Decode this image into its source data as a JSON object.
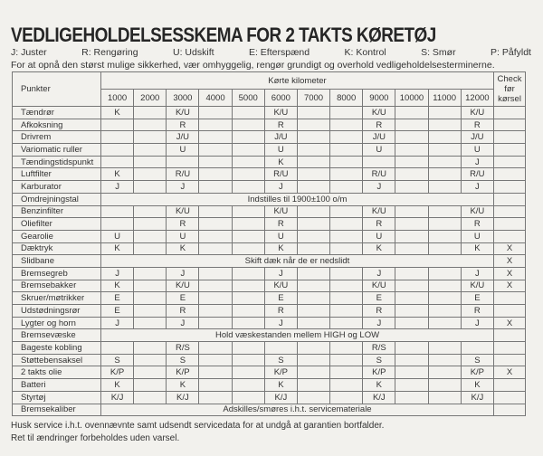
{
  "title": "VEDLIGEHOLDELSESSKEMA FOR 2 TAKTS KØRETØJ",
  "legend": [
    "J: Juster",
    "R: Rengøring",
    "U: Udskift",
    "E: Efterspænd",
    "K: Kontrol",
    "S: Smør",
    "P: Påfyldt"
  ],
  "intro": "For at opnå den størst mulige sikkerhed, vær omhyggelig, rengør grundigt og overhold vedligeholdelsesterminerne.",
  "table": {
    "col_punkter": "Punkter",
    "col_km": "Kørte kilometer",
    "col_check": "Check før kørsel",
    "km": [
      "1000",
      "2000",
      "3000",
      "4000",
      "5000",
      "6000",
      "7000",
      "8000",
      "9000",
      "10000",
      "11000",
      "12000"
    ],
    "rows": [
      {
        "name": "Tændrør",
        "cells": [
          "K",
          "",
          "K/U",
          "",
          "",
          "K/U",
          "",
          "",
          "K/U",
          "",
          "",
          "K/U"
        ],
        "check": ""
      },
      {
        "name": "Afkoksning",
        "cells": [
          "",
          "",
          "R",
          "",
          "",
          "R",
          "",
          "",
          "R",
          "",
          "",
          "R"
        ],
        "check": ""
      },
      {
        "name": "Drivrem",
        "cells": [
          "",
          "",
          "J/U",
          "",
          "",
          "J/U",
          "",
          "",
          "J/U",
          "",
          "",
          "J/U"
        ],
        "check": ""
      },
      {
        "name": "Variomatic ruller",
        "cells": [
          "",
          "",
          "U",
          "",
          "",
          "U",
          "",
          "",
          "U",
          "",
          "",
          "U"
        ],
        "check": ""
      },
      {
        "name": "Tændingstidspunkt",
        "cells": [
          "",
          "",
          "",
          "",
          "",
          "K",
          "",
          "",
          "",
          "",
          "",
          "J"
        ],
        "check": ""
      },
      {
        "name": "Luftfilter",
        "cells": [
          "K",
          "",
          "R/U",
          "",
          "",
          "R/U",
          "",
          "",
          "R/U",
          "",
          "",
          "R/U"
        ],
        "check": ""
      },
      {
        "name": "Karburator",
        "cells": [
          "J",
          "",
          "J",
          "",
          "",
          "J",
          "",
          "",
          "J",
          "",
          "",
          "J"
        ],
        "check": ""
      },
      {
        "name": "Omdrejningstal",
        "span": "Indstilles til 1900±100 o/m",
        "check": ""
      },
      {
        "name": "Benzinfilter",
        "cells": [
          "",
          "",
          "K/U",
          "",
          "",
          "K/U",
          "",
          "",
          "K/U",
          "",
          "",
          "K/U"
        ],
        "check": ""
      },
      {
        "name": "Oliefilter",
        "cells": [
          "",
          "",
          "R",
          "",
          "",
          "R",
          "",
          "",
          "R",
          "",
          "",
          "R"
        ],
        "check": ""
      },
      {
        "name": "Gearolie",
        "cells": [
          "U",
          "",
          "U",
          "",
          "",
          "U",
          "",
          "",
          "U",
          "",
          "",
          "U"
        ],
        "check": ""
      },
      {
        "name": "Dæktryk",
        "cells": [
          "K",
          "",
          "K",
          "",
          "",
          "K",
          "",
          "",
          "K",
          "",
          "",
          "K"
        ],
        "check": "X"
      },
      {
        "name": "Slidbane",
        "span": "Skift dæk når de er nedslidt",
        "check": "X"
      },
      {
        "name": "Bremsegreb",
        "cells": [
          "J",
          "",
          "J",
          "",
          "",
          "J",
          "",
          "",
          "J",
          "",
          "",
          "J"
        ],
        "check": "X"
      },
      {
        "name": "Bremsebakker",
        "cells": [
          "K",
          "",
          "K/U",
          "",
          "",
          "K/U",
          "",
          "",
          "K/U",
          "",
          "",
          "K/U"
        ],
        "check": "X"
      },
      {
        "name": "Skruer/møtrikker",
        "cells": [
          "E",
          "",
          "E",
          "",
          "",
          "E",
          "",
          "",
          "E",
          "",
          "",
          "E"
        ],
        "check": ""
      },
      {
        "name": "Udstødningsrør",
        "cells": [
          "E",
          "",
          "R",
          "",
          "",
          "R",
          "",
          "",
          "R",
          "",
          "",
          "R"
        ],
        "check": ""
      },
      {
        "name": "Lygter og horn",
        "cells": [
          "J",
          "",
          "J",
          "",
          "",
          "J",
          "",
          "",
          "J",
          "",
          "",
          "J"
        ],
        "check": "X"
      },
      {
        "name": "Bremsevæske",
        "span": "Hold væskestanden mellem HIGH og LOW",
        "check": ""
      },
      {
        "name": "Bageste kobling",
        "cells": [
          "",
          "",
          "R/S",
          "",
          "",
          "",
          "",
          "",
          "R/S",
          "",
          "",
          ""
        ],
        "check": ""
      },
      {
        "name": "Støttebensaksel",
        "cells": [
          "S",
          "",
          "S",
          "",
          "",
          "S",
          "",
          "",
          "S",
          "",
          "",
          "S"
        ],
        "check": ""
      },
      {
        "name": "2 takts olie",
        "cells": [
          "K/P",
          "",
          "K/P",
          "",
          "",
          "K/P",
          "",
          "",
          "K/P",
          "",
          "",
          "K/P"
        ],
        "check": "X"
      },
      {
        "name": "Batteri",
        "cells": [
          "K",
          "",
          "K",
          "",
          "",
          "K",
          "",
          "",
          "K",
          "",
          "",
          "K"
        ],
        "check": ""
      },
      {
        "name": "Styrtøj",
        "cells": [
          "K/J",
          "",
          "K/J",
          "",
          "",
          "K/J",
          "",
          "",
          "K/J",
          "",
          "",
          "K/J"
        ],
        "check": ""
      },
      {
        "name": "Bremsekaliber",
        "span": "Adskilles/smøres i.h.t. servicemateriale",
        "check": ""
      }
    ]
  },
  "footer": [
    "Husk service i.h.t. ovennævnte samt udsendt servicedata for at undgå at garantien bortfalder.",
    "Ret til ændringer forbeholdes uden varsel."
  ]
}
